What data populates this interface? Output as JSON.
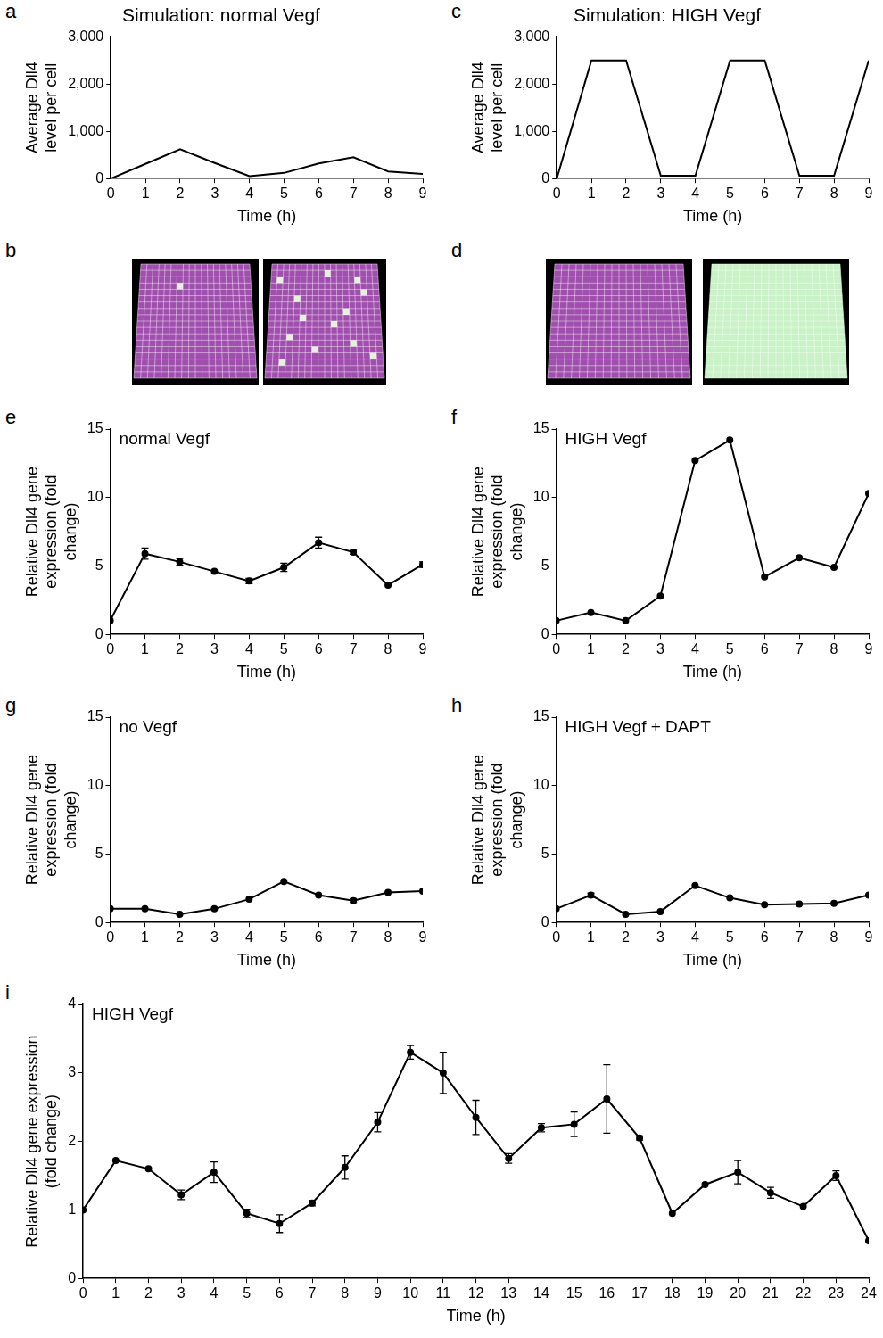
{
  "chart_data": [
    {
      "panel": "a",
      "type": "line",
      "title": "Simulation: normal Vegf",
      "x_label": "Time (h)",
      "y_label": "Average Dll4 level per cell",
      "x": [
        0,
        1,
        2,
        3,
        4,
        5,
        6,
        7,
        8,
        9
      ],
      "values": [
        0,
        310,
        620,
        330,
        50,
        120,
        320,
        450,
        150,
        100
      ],
      "xlim": [
        0,
        9
      ],
      "xticks": [
        0,
        1,
        2,
        3,
        4,
        5,
        6,
        7,
        8,
        9
      ],
      "ylim": [
        0,
        3000
      ],
      "yticks": [
        0,
        1000,
        2000,
        3000
      ],
      "grid": false,
      "marker": "none",
      "color": "#000000"
    },
    {
      "panel": "c",
      "type": "line",
      "title": "Simulation: HIGH Vegf",
      "x_label": "Time (h)",
      "y_label": "Average Dll4 level per cell",
      "x": [
        0,
        1,
        2,
        3,
        4,
        5,
        6,
        7,
        8,
        9
      ],
      "values": [
        0,
        2500,
        2500,
        60,
        60,
        2500,
        2500,
        60,
        60,
        2500
      ],
      "xlim": [
        0,
        9
      ],
      "xticks": [
        0,
        1,
        2,
        3,
        4,
        5,
        6,
        7,
        8,
        9
      ],
      "ylim": [
        0,
        3000
      ],
      "yticks": [
        0,
        1000,
        2000,
        3000
      ],
      "grid": false,
      "marker": "none",
      "color": "#000000"
    },
    {
      "panel": "e",
      "type": "line",
      "annotation": "normal Vegf",
      "x_label": "Time (h)",
      "y_label": "Relative Dll4 gene expression (fold change)",
      "x": [
        0,
        1,
        2,
        3,
        4,
        5,
        6,
        7,
        8,
        9
      ],
      "values": [
        1.0,
        5.9,
        5.3,
        4.6,
        3.9,
        4.9,
        6.7,
        6.0,
        3.6,
        5.1
      ],
      "errors": [
        null,
        0.4,
        0.25,
        null,
        0.2,
        0.3,
        0.4,
        0.15,
        null,
        0.2
      ],
      "xlim": [
        0,
        9
      ],
      "xticks": [
        0,
        1,
        2,
        3,
        4,
        5,
        6,
        7,
        8,
        9
      ],
      "ylim": [
        0,
        15
      ],
      "yticks": [
        0,
        5,
        10,
        15
      ],
      "grid": false,
      "marker": "circle",
      "color": "#000000"
    },
    {
      "panel": "f",
      "type": "line",
      "annotation": "HIGH Vegf",
      "x_label": "Time (h)",
      "y_label": "Relative Dll4 gene expression (fold change)",
      "x": [
        0,
        1,
        2,
        3,
        4,
        5,
        6,
        7,
        8,
        9
      ],
      "values": [
        1.0,
        1.6,
        1.0,
        2.8,
        12.7,
        14.2,
        4.2,
        5.6,
        4.9,
        10.3
      ],
      "errors": [
        null,
        null,
        null,
        null,
        null,
        null,
        null,
        null,
        null,
        null
      ],
      "xlim": [
        0,
        9
      ],
      "xticks": [
        0,
        1,
        2,
        3,
        4,
        5,
        6,
        7,
        8,
        9
      ],
      "ylim": [
        0,
        15
      ],
      "yticks": [
        0,
        5,
        10,
        15
      ],
      "grid": false,
      "marker": "circle",
      "color": "#000000"
    },
    {
      "panel": "g",
      "type": "line",
      "annotation": "no Vegf",
      "x_label": "Time (h)",
      "y_label": "Relative Dll4 gene expression (fold change)",
      "x": [
        0,
        1,
        2,
        3,
        4,
        5,
        6,
        7,
        8,
        9
      ],
      "values": [
        1.0,
        1.0,
        0.6,
        1.0,
        1.7,
        3.0,
        2.0,
        1.6,
        2.2,
        2.3
      ],
      "errors": [
        null,
        null,
        null,
        null,
        null,
        null,
        null,
        0.15,
        null,
        null
      ],
      "xlim": [
        0,
        9
      ],
      "xticks": [
        0,
        1,
        2,
        3,
        4,
        5,
        6,
        7,
        8,
        9
      ],
      "ylim": [
        0,
        15
      ],
      "yticks": [
        0,
        5,
        10,
        15
      ],
      "grid": false,
      "marker": "circle",
      "color": "#000000"
    },
    {
      "panel": "h",
      "type": "line",
      "annotation": "HIGH Vegf + DAPT",
      "x_label": "Time (h)",
      "y_label": "Relative Dll4 gene expression (fold change)",
      "x": [
        0,
        1,
        2,
        3,
        4,
        5,
        6,
        7,
        8,
        9
      ],
      "values": [
        1.0,
        2.0,
        0.6,
        0.8,
        2.7,
        1.8,
        1.3,
        1.35,
        1.4,
        2.0
      ],
      "errors": [
        null,
        0.15,
        null,
        null,
        null,
        null,
        null,
        null,
        null,
        null
      ],
      "xlim": [
        0,
        9
      ],
      "xticks": [
        0,
        1,
        2,
        3,
        4,
        5,
        6,
        7,
        8,
        9
      ],
      "ylim": [
        0,
        15
      ],
      "yticks": [
        0,
        5,
        10,
        15
      ],
      "grid": false,
      "marker": "circle",
      "color": "#000000"
    },
    {
      "panel": "i",
      "type": "line",
      "annotation": "HIGH Vegf",
      "x_label": "Time (h)",
      "y_label": "Relative Dll4 gene expression (fold change)",
      "x": [
        0,
        1,
        2,
        3,
        4,
        5,
        6,
        7,
        8,
        9,
        10,
        11,
        12,
        13,
        14,
        15,
        16,
        17,
        18,
        19,
        20,
        21,
        22,
        23,
        24
      ],
      "values": [
        1.0,
        1.72,
        1.6,
        1.22,
        1.55,
        0.95,
        0.8,
        1.1,
        1.62,
        2.28,
        3.3,
        3.0,
        2.35,
        1.75,
        2.2,
        2.25,
        2.62,
        2.05,
        0.95,
        1.37,
        1.55,
        1.25,
        1.05,
        1.5,
        0.55
      ],
      "errors": [
        null,
        null,
        null,
        0.07,
        0.15,
        0.06,
        0.13,
        0.04,
        0.17,
        0.14,
        0.1,
        0.3,
        0.25,
        0.07,
        0.06,
        0.18,
        0.5,
        0.03,
        null,
        null,
        0.17,
        0.08,
        null,
        0.07,
        null
      ],
      "xlim": [
        0,
        24
      ],
      "xticks": [
        0,
        1,
        2,
        3,
        4,
        5,
        6,
        7,
        8,
        9,
        10,
        11,
        12,
        13,
        14,
        15,
        16,
        17,
        18,
        19,
        20,
        21,
        22,
        23,
        24
      ],
      "ylim": [
        0,
        4
      ],
      "yticks": [
        0,
        1,
        2,
        3,
        4
      ],
      "grid": false,
      "marker": "circle",
      "color": "#000000"
    }
  ],
  "images": [
    {
      "panel": "b"
    },
    {
      "panel": "d"
    }
  ]
}
